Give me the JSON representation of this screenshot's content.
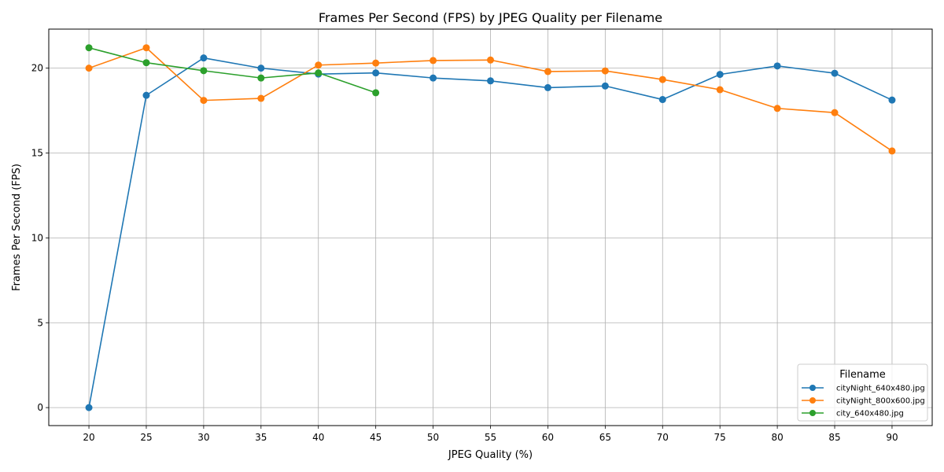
{
  "chart_data": {
    "type": "line",
    "title": "Frames Per Second (FPS) by JPEG Quality per Filename",
    "xlabel": "JPEG Quality (%)",
    "ylabel": "Frames Per Second (FPS)",
    "x_ticks": [
      20,
      25,
      30,
      35,
      40,
      45,
      50,
      55,
      60,
      65,
      70,
      75,
      80,
      85,
      90
    ],
    "y_ticks": [
      0,
      5,
      10,
      15,
      20
    ],
    "xlim": [
      16.5,
      93.5
    ],
    "ylim": [
      -1.06,
      22.3
    ],
    "grid": true,
    "legend": {
      "title": "Filename",
      "placement": "lower-right"
    },
    "series": [
      {
        "name": "cityNight_640x480.jpg",
        "color": "#1f77b4",
        "x": [
          20,
          25,
          30,
          35,
          40,
          45,
          50,
          55,
          60,
          65,
          70,
          75,
          80,
          85,
          90
        ],
        "y": [
          0.0,
          18.4,
          20.6,
          20.0,
          19.65,
          19.72,
          19.42,
          19.25,
          18.85,
          18.95,
          18.15,
          19.63,
          20.13,
          19.7,
          18.12
        ]
      },
      {
        "name": "cityNight_800x600.jpg",
        "color": "#ff7f0e",
        "x": [
          20,
          25,
          30,
          35,
          40,
          45,
          50,
          55,
          60,
          65,
          70,
          75,
          80,
          85,
          90
        ],
        "y": [
          20.0,
          21.2,
          18.1,
          18.22,
          20.18,
          20.3,
          20.45,
          20.48,
          19.8,
          19.84,
          19.33,
          18.73,
          17.63,
          17.38,
          15.12
        ]
      },
      {
        "name": "city_640x480.jpg",
        "color": "#2ca02c",
        "x": [
          20,
          25,
          30,
          35,
          40,
          45
        ],
        "y": [
          21.2,
          20.32,
          19.85,
          19.42,
          19.72,
          18.55
        ]
      }
    ]
  }
}
